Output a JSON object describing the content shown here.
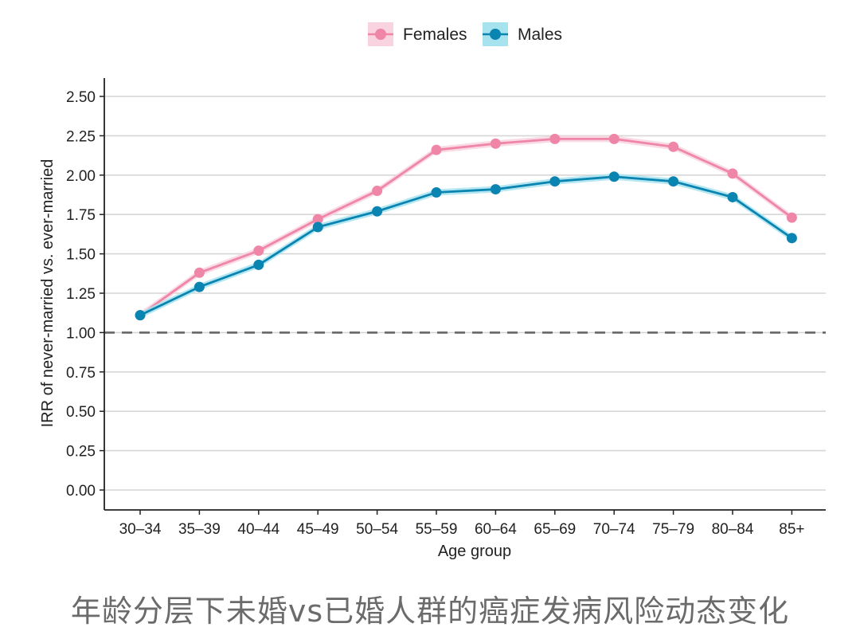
{
  "chart_data": {
    "type": "line",
    "categories": [
      "30–34",
      "35–39",
      "40–44",
      "45–49",
      "50–54",
      "55–59",
      "60–64",
      "65–69",
      "70–74",
      "75–79",
      "80–84",
      "85+"
    ],
    "series": [
      {
        "name": "Females",
        "color": "#ef86a8",
        "band": "#f9d3df",
        "values": [
          1.11,
          1.38,
          1.52,
          1.72,
          1.9,
          2.16,
          2.2,
          2.23,
          2.23,
          2.18,
          2.01,
          1.73
        ]
      },
      {
        "name": "Males",
        "color": "#0a84b0",
        "band": "#a7e3ee",
        "values": [
          1.11,
          1.29,
          1.43,
          1.67,
          1.77,
          1.89,
          1.91,
          1.96,
          1.99,
          1.96,
          1.86,
          1.6
        ]
      }
    ],
    "xlabel": "Age group",
    "ylabel": "IRR of never-married vs. ever-married",
    "ylim": [
      0.0,
      2.5
    ],
    "yticks": [
      "0.00",
      "0.25",
      "0.50",
      "0.75",
      "1.00",
      "1.25",
      "1.50",
      "1.75",
      "2.00",
      "2.25",
      "2.50"
    ],
    "reference_line": 1.0,
    "grid": "horizontal",
    "legend_position": "top"
  },
  "caption": "年龄分层下未婚vs已婚人群的癌症发病风险动态变化"
}
